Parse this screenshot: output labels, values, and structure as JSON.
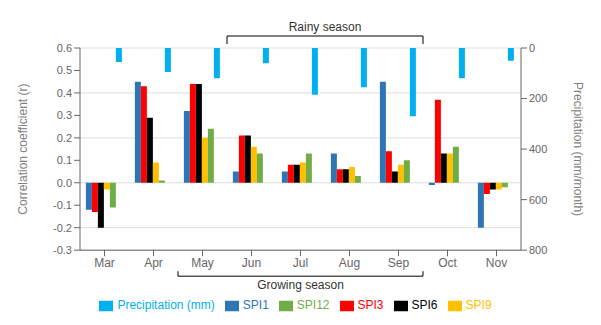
{
  "chart_data": {
    "type": "bar",
    "categories": [
      "Mar",
      "Apr",
      "May",
      "Jun",
      "Jul",
      "Aug",
      "Sep",
      "Oct",
      "Nov"
    ],
    "series": [
      {
        "name": "SPI1",
        "color": "#2E75B6",
        "values": [
          -0.12,
          0.45,
          0.32,
          0.05,
          0.05,
          0.13,
          0.45,
          -0.01,
          -0.2
        ]
      },
      {
        "name": "SPI3",
        "color": "#FF0000",
        "values": [
          -0.13,
          0.43,
          0.44,
          0.21,
          0.08,
          0.06,
          0.14,
          0.37,
          -0.05
        ]
      },
      {
        "name": "SPI6",
        "color": "#000000",
        "values": [
          -0.2,
          0.29,
          0.44,
          0.21,
          0.08,
          0.06,
          0.05,
          0.13,
          -0.03
        ]
      },
      {
        "name": "SPI9",
        "color": "#FFC000",
        "values": [
          -0.03,
          0.09,
          0.2,
          0.16,
          0.09,
          0.07,
          0.08,
          0.13,
          -0.03
        ]
      },
      {
        "name": "SPI12",
        "color": "#70AD47",
        "values": [
          -0.11,
          0.01,
          0.24,
          0.13,
          0.13,
          0.03,
          0.1,
          0.16,
          -0.02
        ]
      },
      {
        "name": "Precipitation (mm)",
        "color": "#00B0F0",
        "axis": "y2",
        "values": [
          55,
          95,
          120,
          60,
          185,
          155,
          270,
          120,
          50
        ]
      }
    ],
    "ylabel": "Correlation coefficient (r)",
    "y2label": "Precipitation (mm/month)",
    "ylim": [
      -0.3,
      0.6
    ],
    "yticks": [
      -0.3,
      -0.2,
      -0.1,
      {
        "value": 0.0,
        "label": "0.0"
      },
      0.1,
      0.2,
      0.3,
      0.4,
      0.5,
      0.6
    ],
    "y2lim": [
      800,
      0
    ],
    "y2ticks": [
      0,
      200,
      400,
      600,
      800
    ],
    "grid": true,
    "legend": "bottom",
    "annotations": [
      {
        "text": "Rainy season",
        "start": "Jun",
        "end": "Sep",
        "position": "top"
      },
      {
        "text": "Growing season",
        "start": "May",
        "end": "Sep",
        "position": "bottom"
      }
    ]
  }
}
